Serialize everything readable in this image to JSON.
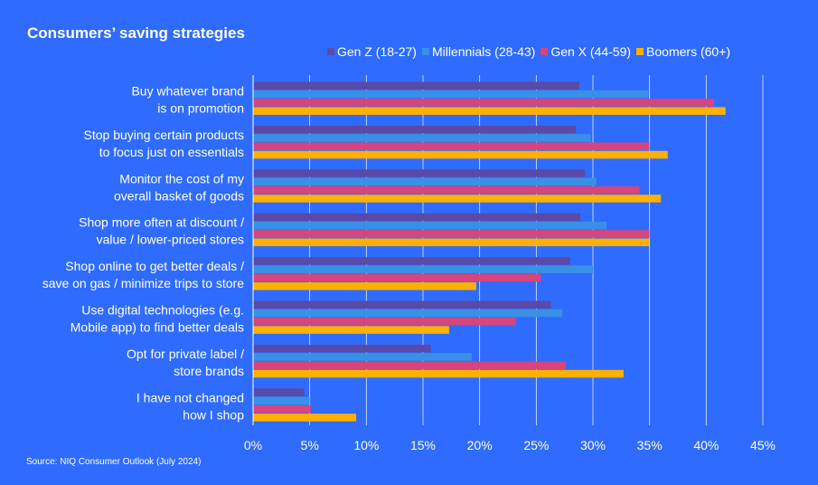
{
  "chart_data": {
    "type": "bar",
    "orientation": "horizontal",
    "title": "Consumers’ saving strategies",
    "categories": [
      [
        "Buy whatever brand",
        "is on promotion"
      ],
      [
        "Stop buying certain products",
        "to focus just on essentials"
      ],
      [
        "Monitor the cost of my",
        "overall basket of goods"
      ],
      [
        "Shop more often at discount /",
        "value / lower-priced stores"
      ],
      [
        "Shop online to get better deals /",
        "save on gas / minimize trips to store"
      ],
      [
        "Use digital technologies (e.g.",
        "Mobile app) to find better deals"
      ],
      [
        "Opt for private label /",
        "store brands"
      ],
      [
        "I have not changed",
        "how I shop"
      ]
    ],
    "series": [
      {
        "name": "Gen Z (18-27)",
        "color": "#5a4aa8",
        "values": [
          28.8,
          28.5,
          29.3,
          28.9,
          28.0,
          26.3,
          15.7,
          4.5
        ]
      },
      {
        "name": "Millennials (28-43)",
        "color": "#3a8fe6",
        "values": [
          34.9,
          29.8,
          30.3,
          31.2,
          30.0,
          27.3,
          19.3,
          5.0
        ]
      },
      {
        "name": "Gen X (44-59)",
        "color": "#d6457e",
        "values": [
          40.7,
          35.0,
          34.1,
          35.0,
          25.4,
          23.2,
          27.6,
          5.1
        ]
      },
      {
        "name": "Boomers (60+)",
        "color": "#ffb000",
        "values": [
          41.7,
          36.6,
          36.0,
          35.0,
          19.7,
          17.3,
          32.7,
          9.1
        ]
      }
    ],
    "xlim": [
      0,
      45
    ],
    "xticks": [
      "0%",
      "5%",
      "10%",
      "15%",
      "20%",
      "25%",
      "30%",
      "35%",
      "40%",
      "45%"
    ],
    "grid": true,
    "legend_position": "top-right",
    "source": "Source: NIQ Consumer Outlook (July 2024)"
  }
}
